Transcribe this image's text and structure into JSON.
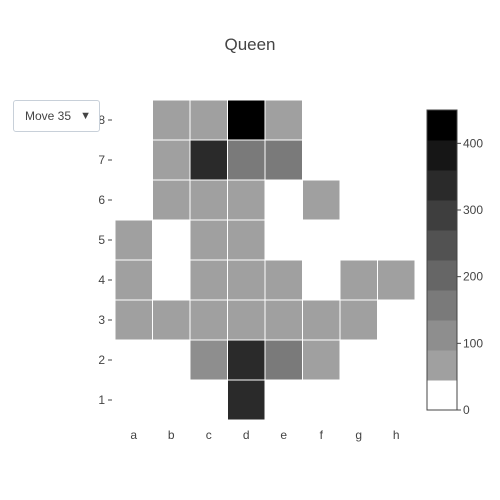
{
  "chart_data": {
    "type": "heatmap",
    "title": "Queen",
    "x_categories": [
      "a",
      "b",
      "c",
      "d",
      "e",
      "f",
      "g",
      "h"
    ],
    "y_categories": [
      "1",
      "2",
      "3",
      "4",
      "5",
      "6",
      "7",
      "8"
    ],
    "z": [
      [
        0,
        0,
        0,
        330,
        0,
        0,
        0,
        0
      ],
      [
        0,
        0,
        130,
        320,
        140,
        55,
        0,
        0
      ],
      [
        55,
        55,
        55,
        55,
        55,
        55,
        55,
        0
      ],
      [
        55,
        0,
        55,
        55,
        55,
        0,
        55,
        55
      ],
      [
        55,
        0,
        55,
        55,
        0,
        0,
        0,
        0
      ],
      [
        0,
        55,
        55,
        55,
        0,
        55,
        0,
        0
      ],
      [
        0,
        55,
        320,
        165,
        150,
        0,
        0,
        0
      ],
      [
        0,
        55,
        55,
        450,
        55,
        0,
        0,
        0
      ]
    ],
    "colorscale": {
      "min": 0,
      "max": 450,
      "bands": 10,
      "colors": [
        "#ffffff",
        "#a0a0a0",
        "#8e8e8e",
        "#7a7a7a",
        "#666666",
        "#525252",
        "#3e3e3e",
        "#2a2a2a",
        "#161616",
        "#000000"
      ]
    },
    "colorbar_ticks": [
      0,
      100,
      200,
      300,
      400
    ],
    "grid": false
  },
  "controls": {
    "frame_selector": {
      "label": "Move 35",
      "icon": "triangle-down-icon"
    }
  }
}
